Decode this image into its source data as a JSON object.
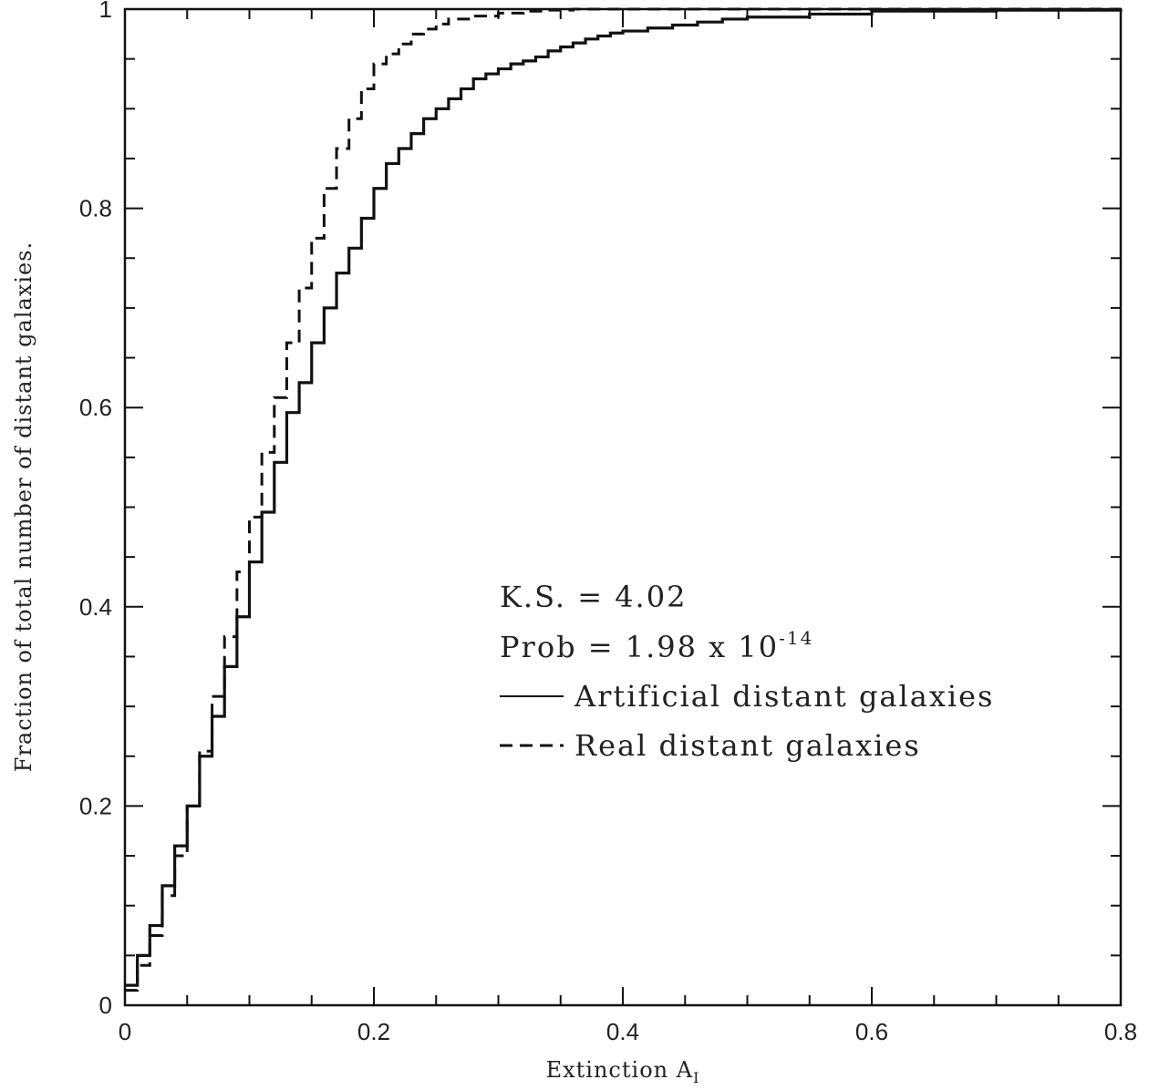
{
  "chart_data": {
    "type": "line",
    "step": true,
    "title": "",
    "xlabel": "Extinction A",
    "xlabel_subscript": "I",
    "ylabel": "Fraction of total number of distant galaxies.",
    "xlim": [
      0,
      0.8
    ],
    "ylim": [
      0,
      1
    ],
    "xticks": [
      0,
      0.2,
      0.4,
      0.6,
      0.8
    ],
    "xtick_labels": [
      "0",
      "0.2",
      "0.4",
      "0.6",
      "0.8"
    ],
    "yticks": [
      0,
      0.2,
      0.4,
      0.6,
      0.8,
      1
    ],
    "ytick_labels": [
      "0",
      "0.2",
      "0.4",
      "0.6",
      "0.8",
      "1"
    ],
    "grid": false,
    "annotations": {
      "ks": "K.S. = 4.02",
      "prob_prefix": "Prob = 1.98 x 10",
      "prob_exponent": "-14"
    },
    "series": [
      {
        "name": "Artificial distant galaxies",
        "style": "solid",
        "color": "#111111",
        "x": [
          0,
          0.01,
          0.02,
          0.03,
          0.04,
          0.05,
          0.06,
          0.07,
          0.08,
          0.09,
          0.1,
          0.11,
          0.12,
          0.13,
          0.14,
          0.15,
          0.16,
          0.17,
          0.18,
          0.19,
          0.2,
          0.21,
          0.22,
          0.23,
          0.24,
          0.25,
          0.26,
          0.27,
          0.28,
          0.29,
          0.3,
          0.31,
          0.32,
          0.33,
          0.34,
          0.35,
          0.36,
          0.37,
          0.38,
          0.39,
          0.4,
          0.42,
          0.44,
          0.46,
          0.48,
          0.5,
          0.55,
          0.6,
          0.7,
          0.8
        ],
        "y": [
          0.02,
          0.05,
          0.08,
          0.12,
          0.16,
          0.2,
          0.25,
          0.29,
          0.34,
          0.39,
          0.445,
          0.495,
          0.545,
          0.595,
          0.625,
          0.665,
          0.7,
          0.735,
          0.76,
          0.79,
          0.82,
          0.845,
          0.86,
          0.875,
          0.89,
          0.9,
          0.91,
          0.92,
          0.93,
          0.935,
          0.94,
          0.945,
          0.948,
          0.952,
          0.958,
          0.962,
          0.966,
          0.97,
          0.973,
          0.976,
          0.978,
          0.981,
          0.984,
          0.987,
          0.99,
          0.992,
          0.995,
          0.998,
          0.999,
          1.0
        ]
      },
      {
        "name": "Real distant galaxies",
        "style": "dashed",
        "color": "#111111",
        "x": [
          0,
          0.01,
          0.02,
          0.03,
          0.04,
          0.05,
          0.06,
          0.07,
          0.08,
          0.09,
          0.1,
          0.11,
          0.12,
          0.13,
          0.14,
          0.15,
          0.16,
          0.17,
          0.18,
          0.19,
          0.2,
          0.21,
          0.22,
          0.23,
          0.24,
          0.25,
          0.26,
          0.28,
          0.3,
          0.32,
          0.34,
          0.36,
          0.4,
          0.5,
          0.8
        ],
        "y": [
          0.015,
          0.04,
          0.07,
          0.11,
          0.15,
          0.2,
          0.255,
          0.31,
          0.37,
          0.435,
          0.49,
          0.555,
          0.61,
          0.665,
          0.72,
          0.77,
          0.82,
          0.86,
          0.89,
          0.92,
          0.945,
          0.955,
          0.965,
          0.975,
          0.98,
          0.985,
          0.99,
          0.993,
          0.996,
          0.998,
          0.999,
          1.0,
          1.0,
          1.0,
          1.0
        ]
      }
    ]
  }
}
